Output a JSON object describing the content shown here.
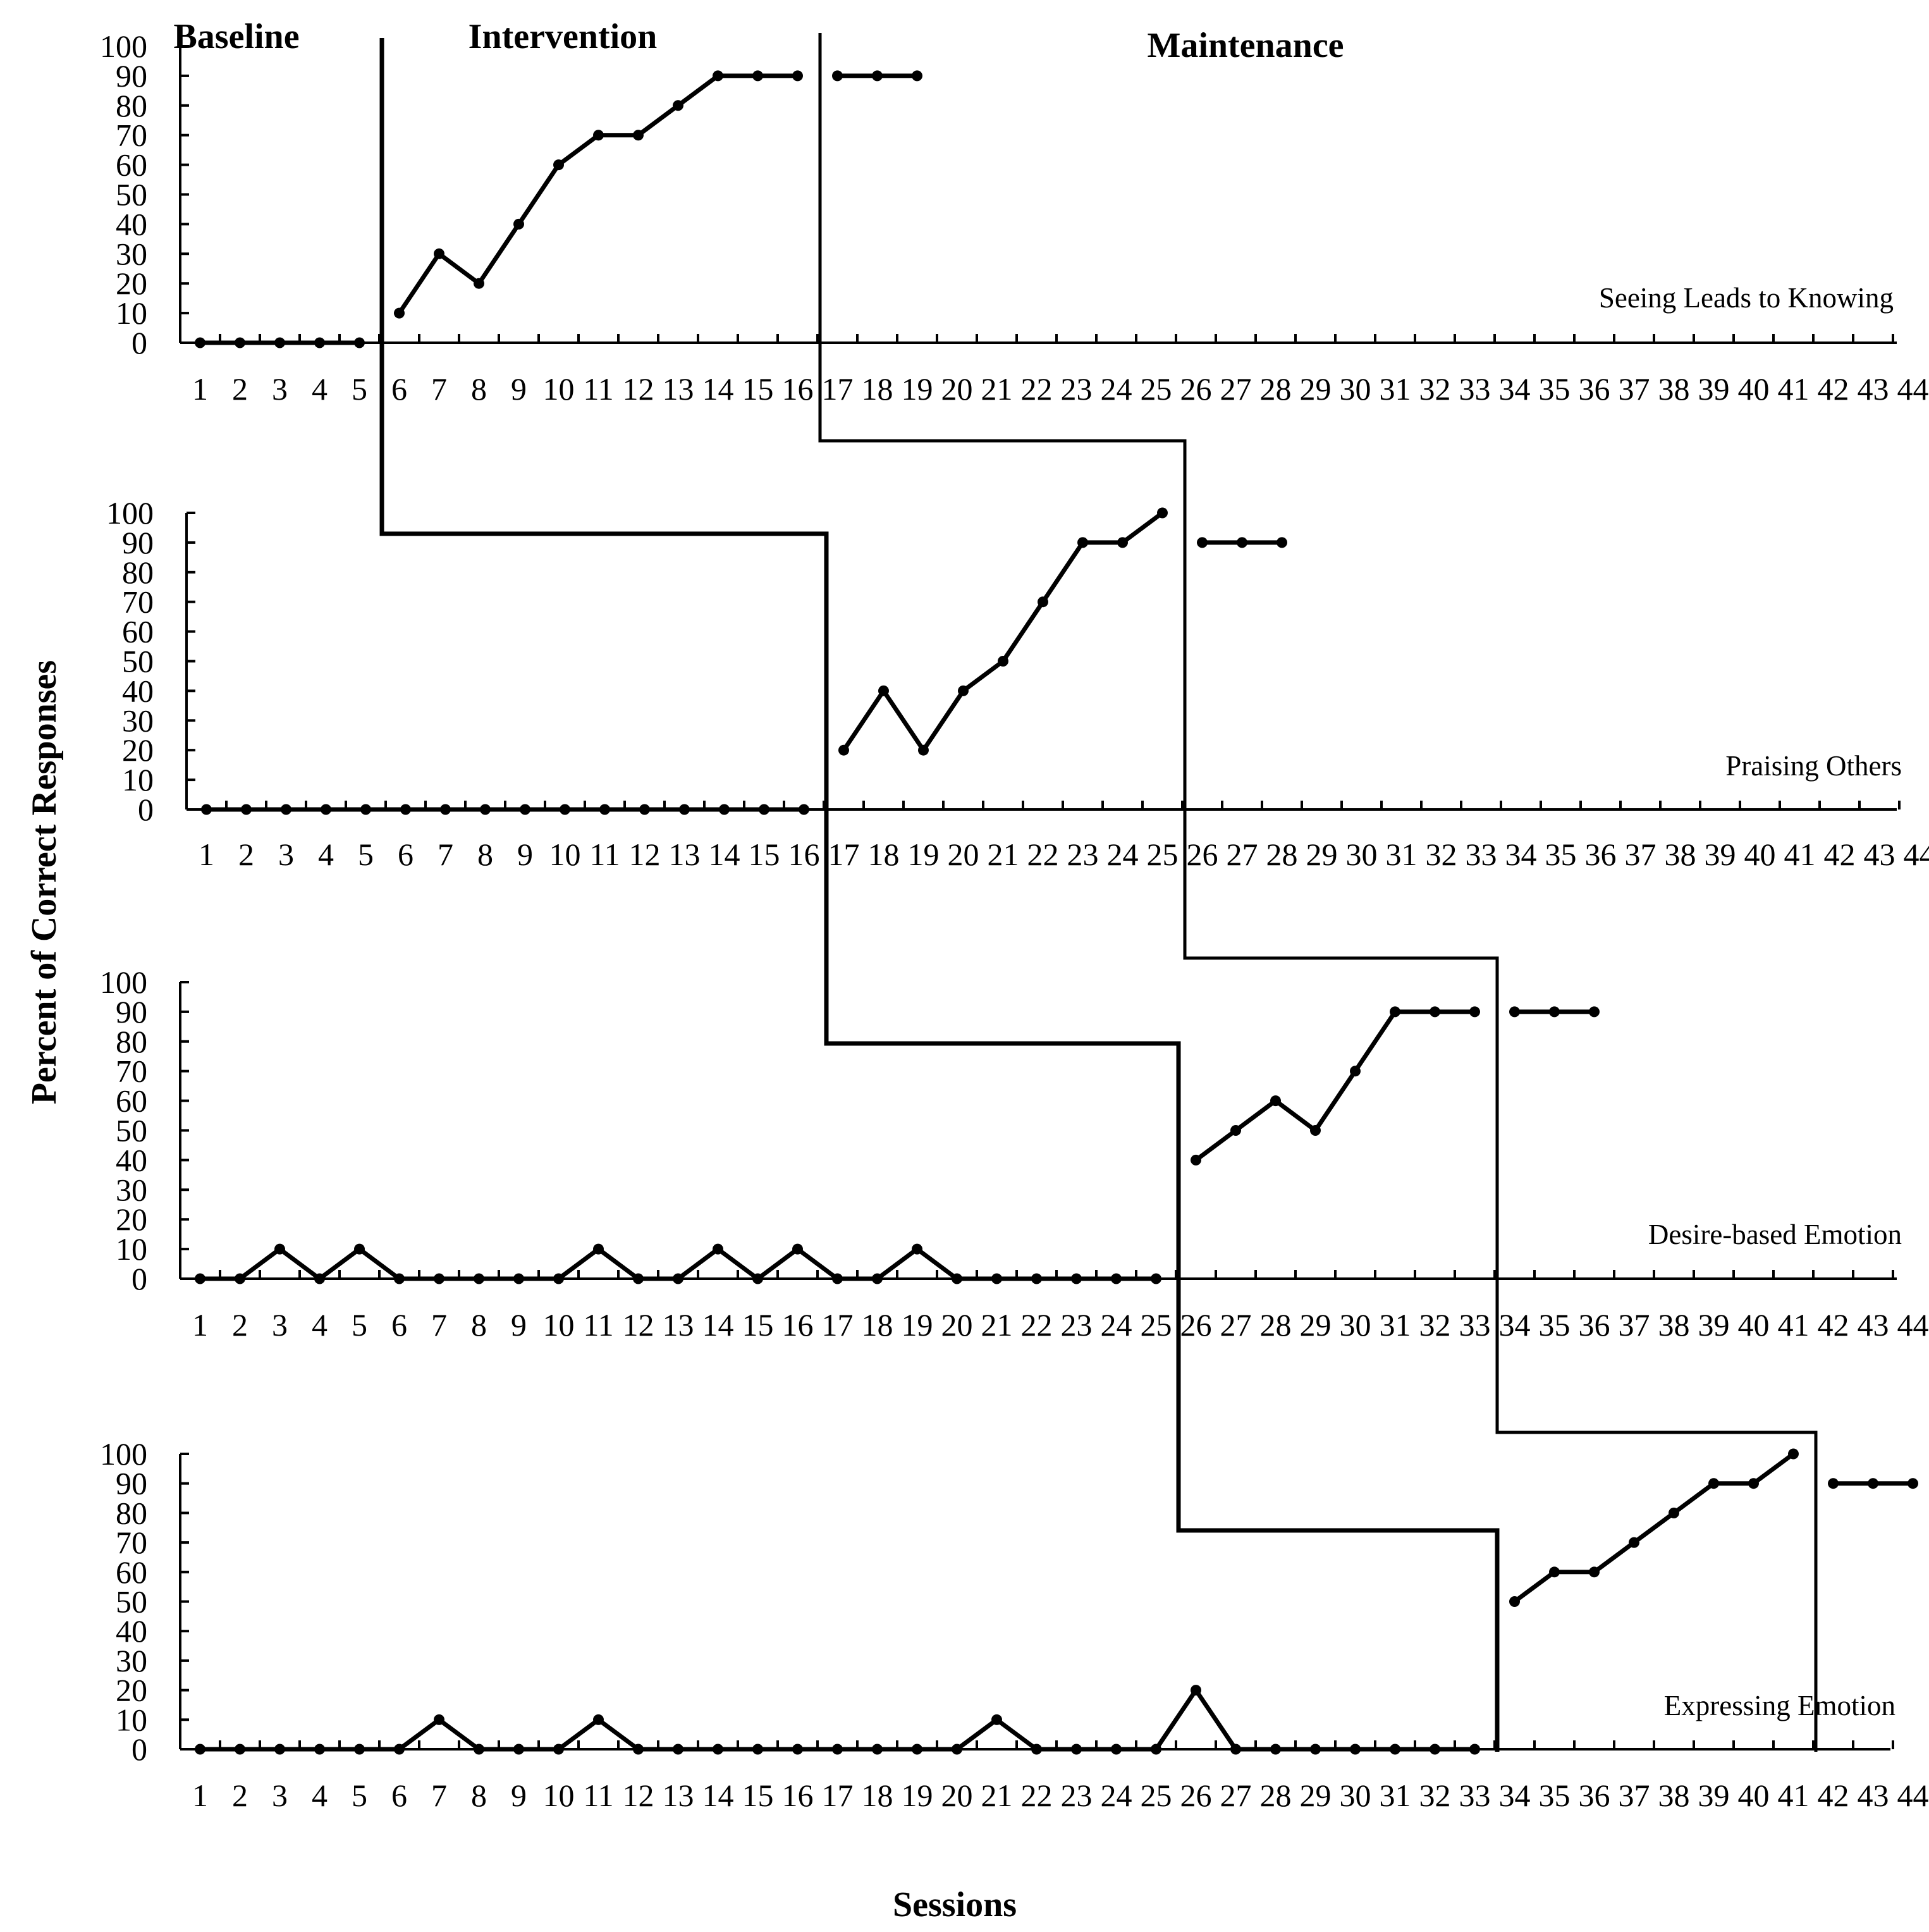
{
  "chart_data": {
    "type": "line",
    "ylabel": "Percent of Correct Responses",
    "xlabel": "Sessions",
    "phases": [
      "Baseline",
      "Intervention",
      "Maintenance"
    ],
    "x_ticks": [
      "1",
      "2",
      "3",
      "4",
      "5",
      "6",
      "7",
      "8",
      "9",
      "10",
      "11",
      "12",
      "13",
      "14",
      "15",
      "16",
      "17",
      "18",
      "19",
      "20",
      "21",
      "22",
      "23",
      "24",
      "25",
      "26",
      "27",
      "28",
      "29",
      "30",
      "31",
      "32",
      "33",
      "34",
      "35",
      "36",
      "37",
      "38",
      "39",
      "40",
      "41",
      "42",
      "43",
      "44"
    ],
    "y_ticks": [
      "0",
      "10",
      "20",
      "30",
      "40",
      "50",
      "60",
      "70",
      "80",
      "90",
      "100"
    ],
    "ylim": [
      0,
      100
    ],
    "panels": [
      {
        "title": "Seeing Leads to Knowing",
        "segments": [
          {
            "phase": "Baseline",
            "x": [
              1,
              2,
              3,
              4,
              5
            ],
            "y": [
              0,
              0,
              0,
              0,
              0
            ]
          },
          {
            "phase": "Intervention",
            "x": [
              6,
              7,
              8,
              9,
              10,
              11,
              12,
              13,
              14,
              15,
              16
            ],
            "y": [
              10,
              30,
              20,
              40,
              60,
              70,
              70,
              80,
              90,
              90,
              90
            ]
          },
          {
            "phase": "Maintenance",
            "x": [
              17,
              18,
              19
            ],
            "y": [
              90,
              90,
              90
            ]
          }
        ]
      },
      {
        "title": "Praising Others",
        "segments": [
          {
            "phase": "Baseline",
            "x": [
              1,
              2,
              3,
              4,
              5,
              6,
              7,
              8,
              9,
              10,
              11,
              12,
              13,
              14,
              15,
              16
            ],
            "y": [
              0,
              0,
              0,
              0,
              0,
              0,
              0,
              0,
              0,
              0,
              0,
              0,
              0,
              0,
              0,
              0
            ]
          },
          {
            "phase": "Intervention",
            "x": [
              17,
              18,
              19,
              20,
              21,
              22,
              23,
              24,
              25
            ],
            "y": [
              20,
              40,
              20,
              40,
              50,
              70,
              90,
              90,
              100
            ]
          },
          {
            "phase": "Maintenance",
            "x": [
              26,
              27,
              28
            ],
            "y": [
              90,
              90,
              90
            ]
          }
        ]
      },
      {
        "title": "Desire-based Emotion",
        "segments": [
          {
            "phase": "Baseline",
            "x": [
              1,
              2,
              3,
              4,
              5,
              6,
              7,
              8,
              9,
              10,
              11,
              12,
              13,
              14,
              15,
              16,
              17,
              18,
              19,
              20,
              21,
              22,
              23,
              24,
              25
            ],
            "y": [
              0,
              0,
              10,
              0,
              10,
              0,
              0,
              0,
              0,
              0,
              10,
              0,
              0,
              10,
              0,
              10,
              0,
              0,
              10,
              0,
              0,
              0,
              0,
              0,
              0
            ]
          },
          {
            "phase": "Intervention",
            "x": [
              26,
              27,
              28,
              29,
              30,
              31,
              32,
              33
            ],
            "y": [
              40,
              50,
              60,
              50,
              70,
              90,
              90,
              90
            ]
          },
          {
            "phase": "Maintenance",
            "x": [
              34,
              35,
              36
            ],
            "y": [
              90,
              90,
              90
            ]
          }
        ]
      },
      {
        "title": "Expressing Emotion",
        "segments": [
          {
            "phase": "Baseline",
            "x": [
              1,
              2,
              3,
              4,
              5,
              6,
              7,
              8,
              9,
              10,
              11,
              12,
              13,
              14,
              15,
              16,
              17,
              18,
              19,
              20,
              21,
              22,
              23,
              24,
              25,
              26,
              27,
              28,
              29,
              30,
              31,
              32,
              33
            ],
            "y": [
              0,
              0,
              0,
              0,
              0,
              0,
              10,
              0,
              0,
              0,
              10,
              0,
              0,
              0,
              0,
              0,
              0,
              0,
              0,
              0,
              10,
              0,
              0,
              0,
              0,
              20,
              0,
              0,
              0,
              0,
              0,
              0,
              0
            ]
          },
          {
            "phase": "Intervention",
            "x": [
              34,
              35,
              36,
              37,
              38,
              39,
              40,
              41
            ],
            "y": [
              50,
              60,
              60,
              70,
              80,
              90,
              90,
              100
            ]
          },
          {
            "phase": "Maintenance",
            "x": [
              42,
              43,
              44
            ],
            "y": [
              90,
              90,
              90
            ]
          }
        ]
      }
    ],
    "phase_change_after_session": [
      {
        "baseline_to_intervention": 5,
        "intervention_to_maintenance": 16
      },
      {
        "baseline_to_intervention": 16,
        "intervention_to_maintenance": 25
      },
      {
        "baseline_to_intervention": 25,
        "intervention_to_maintenance": 33
      },
      {
        "baseline_to_intervention": 33,
        "intervention_to_maintenance": 41
      }
    ]
  }
}
